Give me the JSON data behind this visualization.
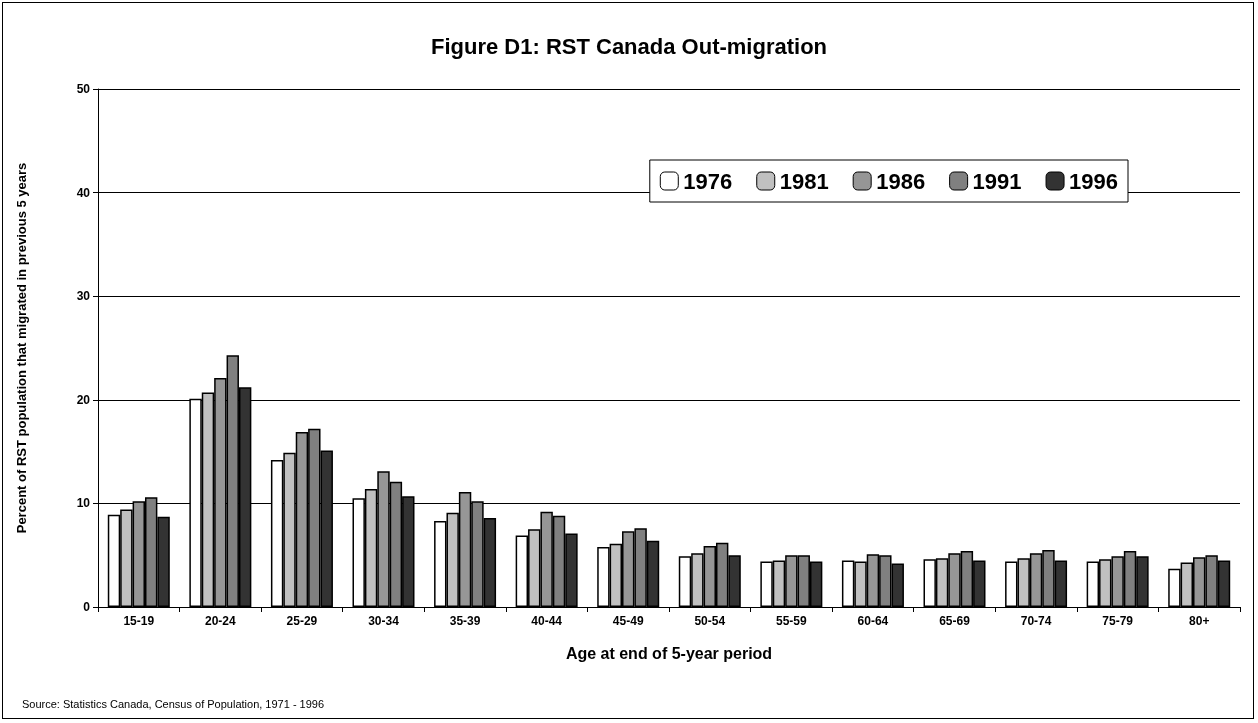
{
  "chart_data": {
    "type": "bar",
    "title": "Figure D1: RST Canada Out-migration",
    "xlabel": "Age at end of 5-year period",
    "ylabel": "Percent of RST population that migrated in previous 5 years",
    "categories": [
      "15-19",
      "20-24",
      "25-29",
      "30-34",
      "35-39",
      "40-44",
      "45-49",
      "50-54",
      "55-59",
      "60-64",
      "65-69",
      "70-74",
      "75-79",
      "80+"
    ],
    "series": [
      {
        "name": "1976",
        "color": "#ffffff",
        "values": [
          8.9,
          20.1,
          14.2,
          10.5,
          8.3,
          6.9,
          5.8,
          4.9,
          4.4,
          4.5,
          4.6,
          4.4,
          4.4,
          3.7
        ]
      },
      {
        "name": "1981",
        "color": "#c0c0c0",
        "values": [
          9.4,
          20.7,
          14.9,
          11.4,
          9.1,
          7.5,
          6.1,
          5.2,
          4.5,
          4.4,
          4.7,
          4.7,
          4.6,
          4.3
        ]
      },
      {
        "name": "1986",
        "color": "#969696",
        "values": [
          10.2,
          22.1,
          16.9,
          13.1,
          11.1,
          9.2,
          7.3,
          5.9,
          5.0,
          5.1,
          5.2,
          5.2,
          4.9,
          4.8
        ]
      },
      {
        "name": "1991",
        "color": "#808080",
        "values": [
          10.6,
          24.3,
          17.2,
          12.1,
          10.2,
          8.8,
          7.6,
          6.2,
          5.0,
          5.0,
          5.4,
          5.5,
          5.4,
          5.0
        ]
      },
      {
        "name": "1996",
        "color": "#333333",
        "values": [
          8.7,
          21.2,
          15.1,
          10.7,
          8.6,
          7.1,
          6.4,
          5.0,
          4.4,
          4.2,
          4.5,
          4.5,
          4.9,
          4.5
        ]
      }
    ],
    "ylim": [
      0,
      50
    ],
    "yticks": [
      0,
      10,
      20,
      30,
      40,
      50
    ],
    "grid": "y",
    "legend": "top right",
    "annotations": [
      "Source: Statistics Canada, Census of Population, 1971 - 1996"
    ]
  }
}
